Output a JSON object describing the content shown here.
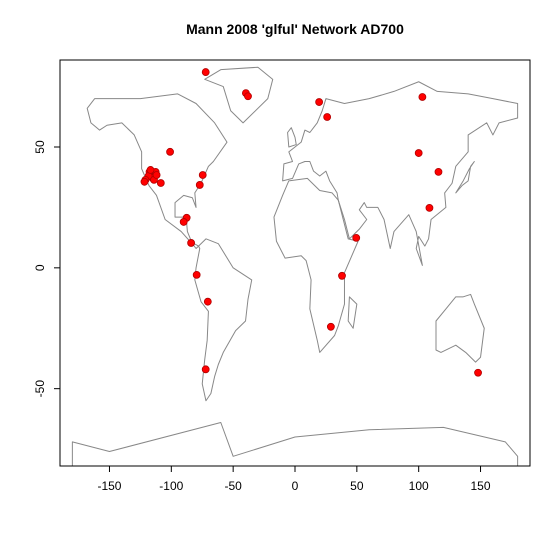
{
  "chart_data": {
    "type": "scatter",
    "title": "Mann 2008 'glful' Network AD700",
    "color": "#ff0000",
    "x": [
      -72.2,
      -39.7,
      -38,
      19.5,
      26,
      103,
      -101,
      100,
      116,
      108.7,
      49.5,
      38,
      29,
      148,
      -74.6,
      -77,
      -87.6,
      -90,
      -84,
      -79.5,
      -70.5,
      -72.2,
      -117.6,
      -115.2,
      -118.4,
      -112.7,
      -114,
      -108.5,
      -120.9,
      -116.8,
      -111.9,
      -121.7
    ],
    "values": [
      81,
      72.3,
      71,
      68.6,
      62.4,
      70.7,
      48,
      47.5,
      39.7,
      24.8,
      12.4,
      -3.3,
      -24.4,
      -43.4,
      38.4,
      34.3,
      20.7,
      19,
      10.3,
      -2.9,
      -14,
      -42,
      39.7,
      37.2,
      38,
      39.7,
      36.4,
      35.1,
      36.4,
      40.5,
      38.4,
      35.6
    ],
    "xlim": [
      -190,
      190
    ],
    "ylim": [
      -82,
      86
    ],
    "xticks": [
      -150,
      -100,
      -50,
      0,
      50,
      100,
      150
    ],
    "yticks": [
      -50,
      0,
      50
    ]
  }
}
